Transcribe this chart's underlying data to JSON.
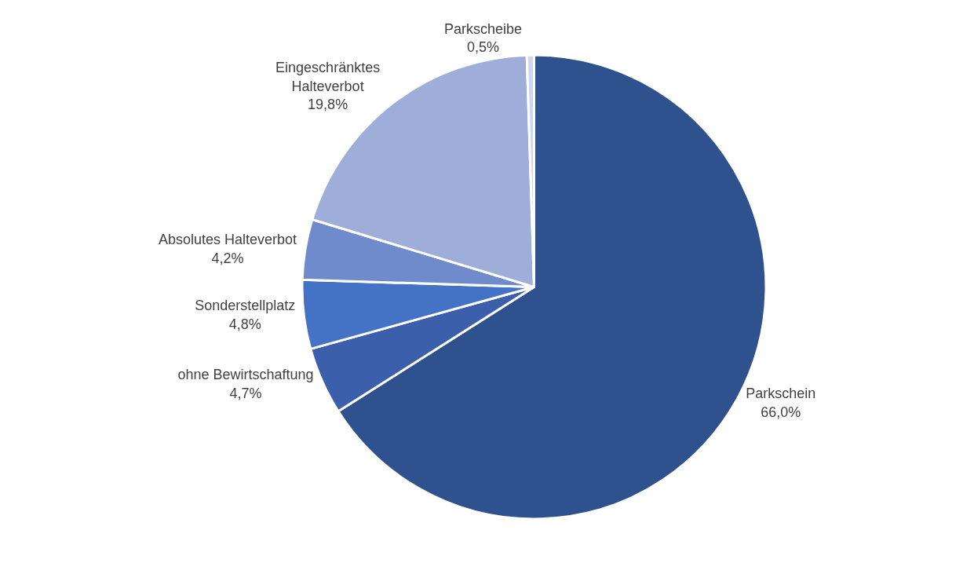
{
  "chart_data": {
    "type": "pie",
    "categories": [
      "Parkschein",
      "ohne Bewirtschaftung",
      "Sonderstellplatz",
      "Absolutes Halteverbot",
      "Eingeschränktes Halteverbot",
      "Parkscheibe"
    ],
    "values": [
      66.0,
      4.7,
      4.8,
      4.2,
      19.8,
      0.5
    ],
    "value_labels": [
      "66,0%",
      "4,7%",
      "4,8%",
      "4,2%",
      "19,8%",
      "0,5%"
    ],
    "colors": [
      "#2f528f",
      "#3b5faa",
      "#4472c4",
      "#6f8bcb",
      "#9eaed8",
      "#cfd7ed"
    ],
    "legend": false
  }
}
